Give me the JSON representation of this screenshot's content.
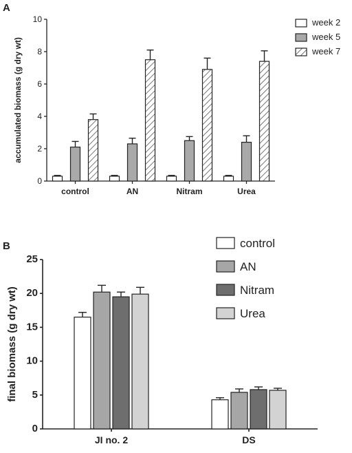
{
  "chart_data": [
    {
      "panel": "A",
      "type": "bar",
      "categories": [
        "control",
        "AN",
        "Nitram",
        "Urea"
      ],
      "ylabel": "accumulated biomass (g dry wt)",
      "xlabel": "",
      "ylim": [
        0,
        10
      ],
      "yticks": [
        0,
        2,
        4,
        6,
        8,
        10
      ],
      "legend_position": "top-right",
      "grid": false,
      "series": [
        {
          "name": "week 2",
          "values": [
            0.3,
            0.3,
            0.3,
            0.3
          ],
          "errors": [
            0.05,
            0.05,
            0.05,
            0.05
          ],
          "fill": "#ffffff",
          "pattern": "none"
        },
        {
          "name": "week 5",
          "values": [
            2.1,
            2.3,
            2.5,
            2.4
          ],
          "errors": [
            0.35,
            0.35,
            0.25,
            0.4
          ],
          "fill": "#a9a9a9",
          "pattern": "none"
        },
        {
          "name": "week 7",
          "values": [
            3.8,
            7.5,
            6.9,
            7.4
          ],
          "errors": [
            0.35,
            0.6,
            0.7,
            0.65
          ],
          "fill": "#ffffff",
          "pattern": "hatch"
        }
      ]
    },
    {
      "panel": "B",
      "type": "bar",
      "categories": [
        "JI no. 2",
        "DS"
      ],
      "ylabel": "final biomass (g dry wt)",
      "xlabel": "",
      "ylim": [
        0,
        25
      ],
      "yticks": [
        0,
        5,
        10,
        15,
        20,
        25
      ],
      "legend_position": "top-right",
      "grid": false,
      "series": [
        {
          "name": "control",
          "values": [
            16.5,
            4.3
          ],
          "errors": [
            0.7,
            0.3
          ],
          "fill": "#ffffff"
        },
        {
          "name": "AN",
          "values": [
            20.2,
            5.4
          ],
          "errors": [
            1.0,
            0.5
          ],
          "fill": "#a6a6a6"
        },
        {
          "name": "Nitram",
          "values": [
            19.5,
            5.8
          ],
          "errors": [
            0.7,
            0.4
          ],
          "fill": "#6e6e6e"
        },
        {
          "name": "Urea",
          "values": [
            19.9,
            5.7
          ],
          "errors": [
            1.0,
            0.3
          ],
          "fill": "#d3d3d3"
        }
      ]
    }
  ]
}
